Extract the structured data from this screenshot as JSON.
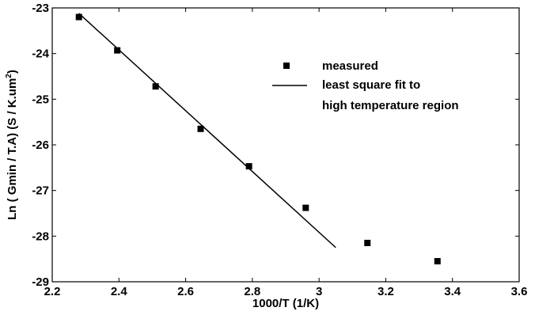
{
  "chart_data": {
    "type": "scatter",
    "xlabel": "1000/T (1/K)",
    "ylabel": "Ln ( Gmin / T.A)  (S / K.um",
    "ylabel_sup": "2",
    "ylabel_tail": ")",
    "xlim": [
      2.2,
      3.6
    ],
    "ylim": [
      -29,
      -23
    ],
    "xticks": [
      2.2,
      2.4,
      2.6,
      2.8,
      3.0,
      3.2,
      3.4,
      3.6
    ],
    "xtick_labels": [
      "2.2",
      "2.4",
      "2.6",
      "2.8",
      "3",
      "3.2",
      "3.4",
      "3.6"
    ],
    "yticks": [
      -23,
      -24,
      -25,
      -26,
      -27,
      -28,
      -29
    ],
    "ytick_labels": [
      "-23",
      "-24",
      "-25",
      "-26",
      "-27",
      "-28",
      "-29"
    ],
    "grid": false,
    "legend_position": "top-right",
    "series": [
      {
        "name": "measured",
        "kind": "markers",
        "marker": "square",
        "x": [
          2.28,
          2.395,
          2.51,
          2.645,
          2.79,
          2.96,
          3.145,
          3.355
        ],
        "y": [
          -23.2,
          -23.93,
          -24.72,
          -25.65,
          -26.47,
          -27.38,
          -28.15,
          -28.55
        ]
      },
      {
        "name": "least square fit to high temperature region",
        "name_lines": [
          "least square fit to",
          "high temperature region"
        ],
        "kind": "line",
        "x": [
          2.28,
          3.05
        ],
        "y": [
          -23.12,
          -28.25
        ]
      }
    ],
    "colors": {
      "marker": "#000000",
      "line": "#000000",
      "axis": "#000000"
    }
  }
}
